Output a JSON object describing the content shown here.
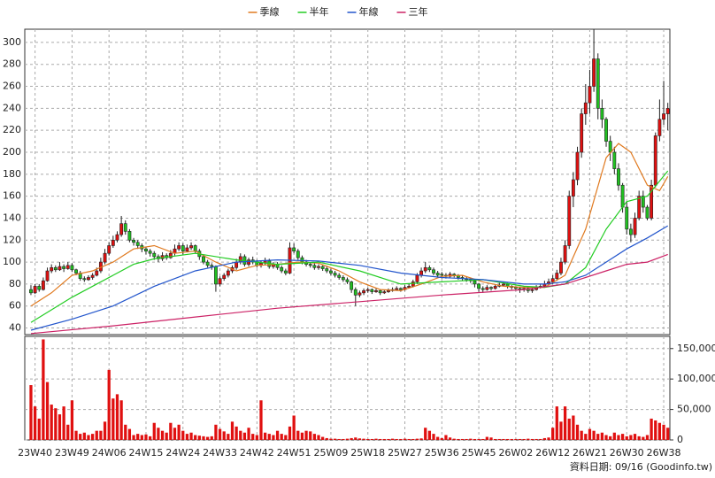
{
  "chart_data": {
    "type": "candlestick",
    "legend": "top",
    "grid": true,
    "up_color": "#e01010",
    "down_color": "#20c020",
    "xlim": [
      -1.5,
      155.5
    ],
    "xticks": [
      {
        "value": 1,
        "label": "23W40"
      },
      {
        "value": 10,
        "label": "23W49"
      },
      {
        "value": 19,
        "label": "24W06"
      },
      {
        "value": 28,
        "label": "24W15"
      },
      {
        "value": 37,
        "label": "24W24"
      },
      {
        "value": 46,
        "label": "24W33"
      },
      {
        "value": 55,
        "label": "24W42"
      },
      {
        "value": 64,
        "label": "24W51"
      },
      {
        "value": 73,
        "label": "25W09"
      },
      {
        "value": 82,
        "label": "25W18"
      },
      {
        "value": 91,
        "label": "25W27"
      },
      {
        "value": 100,
        "label": "25W36"
      },
      {
        "value": 109,
        "label": "25W45"
      },
      {
        "value": 118,
        "label": "26W02"
      },
      {
        "value": 127,
        "label": "26W12"
      },
      {
        "value": 136,
        "label": "26W21"
      },
      {
        "value": 145,
        "label": "26W30"
      },
      {
        "value": 154,
        "label": "26W38"
      }
    ],
    "ylim": [
      34,
      312
    ],
    "yticks": [
      40,
      60,
      80,
      100,
      120,
      140,
      160,
      180,
      200,
      220,
      240,
      260,
      280,
      300
    ],
    "x": [
      0,
      1,
      2,
      3,
      4,
      5,
      6,
      7,
      8,
      9,
      10,
      11,
      12,
      13,
      14,
      15,
      16,
      17,
      18,
      19,
      20,
      21,
      22,
      23,
      24,
      25,
      26,
      27,
      28,
      29,
      30,
      31,
      32,
      33,
      34,
      35,
      36,
      37,
      38,
      39,
      40,
      41,
      42,
      43,
      44,
      45,
      46,
      47,
      48,
      49,
      50,
      51,
      52,
      53,
      54,
      55,
      56,
      57,
      58,
      59,
      60,
      61,
      62,
      63,
      64,
      65,
      66,
      67,
      68,
      69,
      70,
      71,
      72,
      73,
      74,
      75,
      76,
      77,
      78,
      79,
      80,
      81,
      82,
      83,
      84,
      85,
      86,
      87,
      88,
      89,
      90,
      91,
      92,
      93,
      94,
      95,
      96,
      97,
      98,
      99,
      100,
      101,
      102,
      103,
      104,
      105,
      106,
      107,
      108,
      109,
      110,
      111,
      112,
      113,
      114,
      115,
      116,
      117,
      118,
      119,
      120,
      121,
      122,
      123,
      124,
      125,
      126,
      127,
      128,
      129,
      130,
      131,
      132,
      133,
      134,
      135,
      136,
      137,
      138,
      139,
      140,
      141,
      142,
      143,
      144,
      145,
      146,
      147,
      148,
      149,
      150,
      151,
      152,
      153,
      154,
      155
    ],
    "candles": [
      [
        75,
        79,
        70,
        72
      ],
      [
        72,
        80,
        71,
        78
      ],
      [
        78,
        80,
        73,
        75
      ],
      [
        75,
        86,
        74,
        83
      ],
      [
        83,
        95,
        82,
        92
      ],
      [
        92,
        98,
        90,
        95
      ],
      [
        95,
        97,
        91,
        93
      ],
      [
        93,
        100,
        92,
        96
      ],
      [
        96,
        98,
        91,
        94
      ],
      [
        94,
        100,
        93,
        97
      ],
      [
        97,
        99,
        91,
        93
      ],
      [
        93,
        94,
        88,
        90
      ],
      [
        90,
        92,
        83,
        85
      ],
      [
        85,
        87,
        82,
        84
      ],
      [
        84,
        88,
        83,
        86
      ],
      [
        86,
        90,
        84,
        88
      ],
      [
        88,
        95,
        87,
        92
      ],
      [
        92,
        104,
        90,
        100
      ],
      [
        100,
        112,
        98,
        108
      ],
      [
        108,
        118,
        106,
        115
      ],
      [
        115,
        124,
        113,
        120
      ],
      [
        120,
        128,
        118,
        125
      ],
      [
        125,
        142,
        123,
        135
      ],
      [
        135,
        138,
        125,
        128
      ],
      [
        128,
        130,
        118,
        120
      ],
      [
        120,
        122,
        115,
        118
      ],
      [
        118,
        120,
        112,
        115
      ],
      [
        115,
        117,
        109,
        112
      ],
      [
        112,
        114,
        107,
        110
      ],
      [
        110,
        112,
        105,
        108
      ],
      [
        108,
        110,
        102,
        105
      ],
      [
        105,
        107,
        100,
        103
      ],
      [
        103,
        109,
        101,
        106
      ],
      [
        106,
        108,
        102,
        104
      ],
      [
        104,
        111,
        103,
        108
      ],
      [
        108,
        116,
        106,
        112
      ],
      [
        112,
        118,
        110,
        115
      ],
      [
        115,
        117,
        107,
        110
      ],
      [
        110,
        116,
        109,
        113
      ],
      [
        113,
        118,
        111,
        115
      ],
      [
        115,
        116,
        108,
        110
      ],
      [
        110,
        112,
        102,
        105
      ],
      [
        105,
        107,
        98,
        100
      ],
      [
        100,
        102,
        95,
        97
      ],
      [
        97,
        99,
        93,
        96
      ],
      [
        96,
        97,
        73,
        80
      ],
      [
        80,
        87,
        78,
        85
      ],
      [
        85,
        90,
        83,
        88
      ],
      [
        88,
        94,
        86,
        92
      ],
      [
        92,
        97,
        90,
        95
      ],
      [
        95,
        103,
        93,
        100
      ],
      [
        100,
        108,
        98,
        105
      ],
      [
        105,
        107,
        96,
        98
      ],
      [
        98,
        104,
        96,
        102
      ],
      [
        102,
        105,
        98,
        100
      ],
      [
        100,
        102,
        95,
        97
      ],
      [
        97,
        101,
        95,
        99
      ],
      [
        99,
        104,
        97,
        101
      ],
      [
        101,
        103,
        94,
        96
      ],
      [
        96,
        100,
        94,
        98
      ],
      [
        98,
        100,
        93,
        95
      ],
      [
        95,
        97,
        90,
        92
      ],
      [
        92,
        94,
        88,
        90
      ],
      [
        90,
        118,
        89,
        113
      ],
      [
        113,
        117,
        108,
        110
      ],
      [
        110,
        112,
        102,
        104
      ],
      [
        104,
        106,
        98,
        100
      ],
      [
        100,
        102,
        96,
        98
      ],
      [
        98,
        100,
        95,
        97
      ],
      [
        97,
        99,
        93,
        95
      ],
      [
        95,
        98,
        93,
        96
      ],
      [
        96,
        97,
        92,
        94
      ],
      [
        94,
        96,
        90,
        92
      ],
      [
        92,
        94,
        88,
        90
      ],
      [
        90,
        92,
        86,
        88
      ],
      [
        88,
        90,
        84,
        86
      ],
      [
        86,
        88,
        82,
        84
      ],
      [
        84,
        86,
        80,
        82
      ],
      [
        82,
        83,
        72,
        75
      ],
      [
        75,
        77,
        60,
        70
      ],
      [
        70,
        74,
        68,
        72
      ],
      [
        72,
        76,
        70,
        74
      ],
      [
        74,
        77,
        72,
        75
      ],
      [
        75,
        76,
        71,
        73
      ],
      [
        73,
        76,
        72,
        74
      ],
      [
        74,
        75,
        70,
        72
      ],
      [
        72,
        75,
        71,
        73
      ],
      [
        73,
        76,
        72,
        74
      ],
      [
        74,
        77,
        73,
        75
      ],
      [
        75,
        78,
        74,
        76
      ],
      [
        76,
        77,
        73,
        75
      ],
      [
        75,
        79,
        74,
        77
      ],
      [
        77,
        80,
        76,
        78
      ],
      [
        78,
        84,
        77,
        82
      ],
      [
        82,
        90,
        80,
        88
      ],
      [
        88,
        95,
        86,
        92
      ],
      [
        92,
        100,
        90,
        95
      ],
      [
        95,
        97,
        91,
        93
      ],
      [
        93,
        95,
        88,
        90
      ],
      [
        90,
        92,
        86,
        88
      ],
      [
        89,
        91,
        85,
        88
      ],
      [
        88,
        90,
        85,
        87
      ],
      [
        87,
        91,
        86,
        89
      ],
      [
        89,
        90,
        86,
        88
      ],
      [
        88,
        89,
        84,
        86
      ],
      [
        86,
        88,
        83,
        85
      ],
      [
        85,
        87,
        82,
        84
      ],
      [
        84,
        86,
        81,
        83
      ],
      [
        83,
        84,
        77,
        80
      ],
      [
        80,
        81,
        73,
        76
      ],
      [
        76,
        78,
        72,
        75
      ],
      [
        75,
        79,
        74,
        77
      ],
      [
        77,
        78,
        74,
        76
      ],
      [
        76,
        80,
        75,
        78
      ],
      [
        78,
        81,
        77,
        79
      ],
      [
        79,
        82,
        78,
        80
      ],
      [
        80,
        81,
        76,
        78
      ],
      [
        78,
        79,
        75,
        77
      ],
      [
        77,
        78,
        74,
        76
      ],
      [
        76,
        77,
        72,
        75
      ],
      [
        75,
        78,
        73,
        76
      ],
      [
        76,
        77,
        72,
        74
      ],
      [
        74,
        77,
        72,
        75
      ],
      [
        75,
        79,
        74,
        77
      ],
      [
        77,
        80,
        76,
        78
      ],
      [
        78,
        83,
        77,
        80
      ],
      [
        80,
        85,
        79,
        82
      ],
      [
        82,
        88,
        80,
        85
      ],
      [
        85,
        93,
        83,
        90
      ],
      [
        90,
        104,
        88,
        100
      ],
      [
        100,
        120,
        98,
        115
      ],
      [
        115,
        165,
        112,
        160
      ],
      [
        160,
        182,
        150,
        175
      ],
      [
        175,
        205,
        170,
        200
      ],
      [
        200,
        240,
        195,
        235
      ],
      [
        235,
        262,
        225,
        245
      ],
      [
        245,
        275,
        235,
        260
      ],
      [
        260,
        312,
        255,
        285
      ],
      [
        285,
        290,
        230,
        240
      ],
      [
        240,
        248,
        222,
        230
      ],
      [
        230,
        232,
        205,
        210
      ],
      [
        210,
        215,
        192,
        200
      ],
      [
        200,
        205,
        180,
        185
      ],
      [
        185,
        190,
        165,
        170
      ],
      [
        170,
        172,
        145,
        150
      ],
      [
        150,
        155,
        125,
        130
      ],
      [
        130,
        135,
        118,
        125
      ],
      [
        125,
        145,
        122,
        140
      ],
      [
        140,
        165,
        138,
        160
      ],
      [
        160,
        165,
        145,
        150
      ],
      [
        150,
        152,
        138,
        140
      ],
      [
        140,
        175,
        138,
        170
      ],
      [
        170,
        218,
        168,
        215
      ],
      [
        215,
        248,
        210,
        230
      ],
      [
        230,
        265,
        225,
        235
      ],
      [
        235,
        245,
        220,
        240
      ]
    ],
    "volume": {
      "color": "#e01010",
      "ylim": [
        0,
        170000
      ],
      "yticks": [
        {
          "value": 0,
          "label": "0"
        },
        {
          "value": 50000,
          "label": "50,000"
        },
        {
          "value": 100000,
          "label": "100,000"
        },
        {
          "value": 150000,
          "label": "150,000"
        }
      ],
      "values": [
        90000,
        55000,
        35000,
        165000,
        95000,
        58000,
        52000,
        42000,
        55000,
        25000,
        65000,
        15000,
        10000,
        12000,
        8000,
        10000,
        15000,
        15000,
        30000,
        115000,
        68000,
        75000,
        65000,
        25000,
        18000,
        8000,
        10000,
        8000,
        9000,
        6000,
        28000,
        20000,
        15000,
        12000,
        28000,
        20000,
        25000,
        15000,
        10000,
        12000,
        8000,
        7000,
        6000,
        5000,
        6000,
        25000,
        18000,
        14000,
        10000,
        30000,
        22000,
        15000,
        12000,
        20000,
        10000,
        8000,
        65000,
        12000,
        10000,
        8000,
        15000,
        10000,
        8000,
        22000,
        40000,
        15000,
        12000,
        15000,
        14000,
        10000,
        8000,
        5000,
        3000,
        2000,
        2000,
        1500,
        1500,
        2000,
        3000,
        4000,
        2500,
        2000,
        1500,
        1500,
        2000,
        1500,
        1500,
        1500,
        2000,
        1500,
        1500,
        2000,
        1500,
        1500,
        2000,
        2500,
        20000,
        15000,
        10000,
        5000,
        3000,
        8000,
        4000,
        2000,
        1500,
        1500,
        1500,
        2000,
        1500,
        1500,
        1500,
        5000,
        4000,
        1500,
        1500,
        1500,
        1500,
        1500,
        1500,
        1500,
        1500,
        2000,
        1500,
        1500,
        1500,
        3000,
        4000,
        20000,
        55000,
        30000,
        55000,
        35000,
        40000,
        25000,
        15000,
        10000,
        18000,
        15000,
        10000,
        12000,
        8000,
        6000,
        12000,
        8000,
        10000,
        6000,
        8000,
        10000,
        6000,
        5000,
        8000,
        35000,
        32000,
        28000,
        25000,
        20000
      ]
    },
    "series": [
      {
        "name": "季線",
        "color": "#e07a20",
        "x": [
          0,
          5,
          10,
          15,
          20,
          25,
          30,
          35,
          40,
          45,
          50,
          55,
          60,
          65,
          70,
          75,
          80,
          85,
          90,
          95,
          100,
          105,
          110,
          115,
          120,
          125,
          130,
          135,
          140,
          143,
          146,
          150,
          153,
          155
        ],
        "values": [
          60,
          72,
          88,
          92,
          100,
          112,
          115,
          108,
          110,
          100,
          92,
          97,
          98,
          100,
          99,
          92,
          82,
          75,
          74,
          80,
          87,
          88,
          82,
          78,
          77,
          77,
          88,
          130,
          195,
          208,
          200,
          170,
          165,
          178
        ]
      },
      {
        "name": "半年",
        "color": "#22cc22",
        "x": [
          0,
          10,
          20,
          25,
          30,
          40,
          50,
          60,
          70,
          80,
          90,
          100,
          110,
          120,
          125,
          130,
          135,
          140,
          145,
          150,
          155
        ],
        "values": [
          45,
          68,
          88,
          98,
          103,
          108,
          102,
          98,
          100,
          92,
          80,
          82,
          84,
          78,
          77,
          80,
          95,
          130,
          155,
          160,
          183
        ]
      },
      {
        "name": "年線",
        "color": "#2255cc",
        "x": [
          0,
          10,
          20,
          30,
          40,
          50,
          60,
          70,
          80,
          90,
          100,
          110,
          120,
          125,
          130,
          135,
          140,
          145,
          150,
          155
        ],
        "values": [
          38,
          48,
          60,
          78,
          92,
          100,
          102,
          101,
          97,
          90,
          86,
          84,
          80,
          80,
          82,
          88,
          100,
          112,
          122,
          133
        ]
      },
      {
        "name": "三年",
        "color": "#cc2266",
        "x": [
          0,
          20,
          40,
          60,
          80,
          100,
          120,
          130,
          140,
          145,
          150,
          155
        ],
        "values": [
          35,
          42,
          50,
          58,
          64,
          70,
          75,
          80,
          92,
          98,
          100,
          107
        ]
      }
    ],
    "footer": "資料日期: 09/16 (Goodinfo.tw)"
  }
}
